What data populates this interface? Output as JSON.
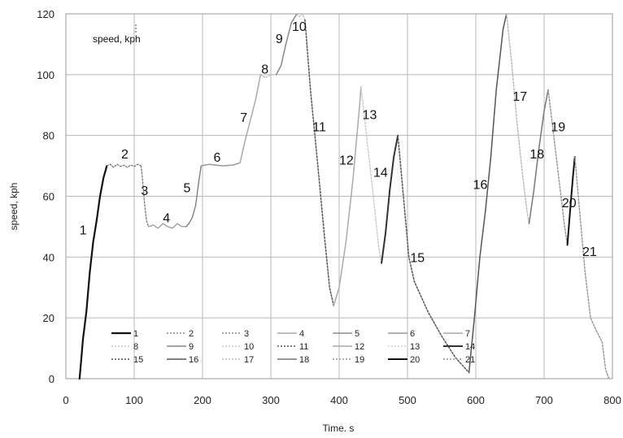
{
  "chart_data": {
    "type": "line",
    "title": "",
    "inner_label": "speed, kph",
    "xlabel": "Time. s",
    "ylabel": "speed, kph",
    "xlim": [
      0,
      800
    ],
    "ylim": [
      0,
      120
    ],
    "xticks": [
      "0",
      "100",
      "200",
      "300",
      "400",
      "500",
      "600",
      "700",
      "800"
    ],
    "yticks": [
      "0",
      "20",
      "40",
      "60",
      "80",
      "100",
      "120"
    ],
    "grid": true,
    "legend_position": "bottom-left inside",
    "series": [
      {
        "name": "1",
        "color": "#111111",
        "dash": "",
        "width": 2.2,
        "points": [
          [
            20,
            0
          ],
          [
            22,
            5
          ],
          [
            25,
            13
          ],
          [
            30,
            22
          ],
          [
            35,
            35
          ],
          [
            40,
            45
          ],
          [
            45,
            52
          ],
          [
            50,
            60
          ],
          [
            55,
            66
          ],
          [
            60,
            70
          ]
        ]
      },
      {
        "name": "2",
        "color": "#777777",
        "dash": "2,2",
        "width": 1.3,
        "points": [
          [
            60,
            70
          ],
          [
            65,
            70.5
          ],
          [
            70,
            69.5
          ],
          [
            75,
            70.5
          ],
          [
            80,
            69.8
          ],
          [
            85,
            70.2
          ],
          [
            90,
            69.5
          ],
          [
            95,
            70.3
          ],
          [
            100,
            69.8
          ],
          [
            105,
            70.5
          ],
          [
            110,
            70
          ]
        ]
      },
      {
        "name": "3",
        "color": "#777777",
        "dash": "2,2",
        "width": 1.3,
        "points": [
          [
            110,
            70
          ],
          [
            112,
            66
          ],
          [
            115,
            58
          ],
          [
            118,
            52
          ],
          [
            121,
            50
          ]
        ]
      },
      {
        "name": "4",
        "color": "#999999",
        "dash": "",
        "width": 1.3,
        "points": [
          [
            121,
            50
          ],
          [
            128,
            50.5
          ],
          [
            135,
            49.5
          ],
          [
            142,
            51
          ],
          [
            149,
            50
          ],
          [
            156,
            49.5
          ],
          [
            163,
            51
          ],
          [
            170,
            50
          ],
          [
            176,
            50
          ]
        ]
      },
      {
        "name": "5",
        "color": "#777777",
        "dash": "",
        "width": 1.3,
        "points": [
          [
            176,
            50
          ],
          [
            180,
            51
          ],
          [
            185,
            53
          ],
          [
            190,
            57
          ],
          [
            194,
            64
          ],
          [
            198,
            70
          ]
        ]
      },
      {
        "name": "6",
        "color": "#999999",
        "dash": "",
        "width": 1.5,
        "points": [
          [
            198,
            70
          ],
          [
            210,
            70.5
          ],
          [
            230,
            70
          ],
          [
            245,
            70.3
          ],
          [
            255,
            71
          ]
        ]
      },
      {
        "name": "7",
        "color": "#aaaaaa",
        "dash": "",
        "width": 1.5,
        "points": [
          [
            255,
            71
          ],
          [
            262,
            78
          ],
          [
            270,
            85
          ],
          [
            278,
            92
          ],
          [
            285,
            100
          ]
        ]
      },
      {
        "name": "8",
        "color": "#bbbbbb",
        "dash": "2,2",
        "width": 1.3,
        "points": [
          [
            285,
            100
          ],
          [
            292,
            99
          ],
          [
            300,
            100
          ],
          [
            308,
            100
          ]
        ]
      },
      {
        "name": "9",
        "color": "#888888",
        "dash": "",
        "width": 1.5,
        "points": [
          [
            308,
            100
          ],
          [
            315,
            103
          ],
          [
            322,
            110
          ],
          [
            330,
            117
          ],
          [
            338,
            120
          ]
        ]
      },
      {
        "name": "10",
        "color": "#bbbbbb",
        "dash": "2,2",
        "width": 1.3,
        "points": [
          [
            338,
            120
          ],
          [
            342,
            119
          ],
          [
            346,
            120
          ],
          [
            350,
            118
          ]
        ]
      },
      {
        "name": "11",
        "color": "#555555",
        "dash": "2,2",
        "width": 1.5,
        "points": [
          [
            350,
            118
          ],
          [
            358,
            95
          ],
          [
            368,
            72
          ],
          [
            378,
            48
          ],
          [
            386,
            30
          ],
          [
            392,
            24
          ]
        ]
      },
      {
        "name": "12",
        "color": "#aaaaaa",
        "dash": "",
        "width": 1.5,
        "points": [
          [
            392,
            24
          ],
          [
            400,
            30
          ],
          [
            410,
            45
          ],
          [
            420,
            65
          ],
          [
            430,
            90
          ],
          [
            432,
            96
          ]
        ]
      },
      {
        "name": "13",
        "color": "#cccccc",
        "dash": "2,2",
        "width": 1.5,
        "points": [
          [
            432,
            96
          ],
          [
            440,
            80
          ],
          [
            450,
            60
          ],
          [
            458,
            43
          ],
          [
            462,
            38
          ]
        ]
      },
      {
        "name": "14",
        "color": "#333333",
        "dash": "",
        "width": 2,
        "points": [
          [
            462,
            38
          ],
          [
            468,
            48
          ],
          [
            474,
            62
          ],
          [
            480,
            73
          ],
          [
            486,
            80
          ]
        ]
      },
      {
        "name": "15",
        "color": "#555555",
        "dash": "2,2",
        "width": 1.5,
        "points": [
          [
            486,
            80
          ],
          [
            494,
            60
          ],
          [
            502,
            40
          ],
          [
            510,
            32
          ],
          [
            530,
            22
          ],
          [
            550,
            14
          ],
          [
            570,
            7
          ],
          [
            590,
            2
          ]
        ]
      },
      {
        "name": "16",
        "color": "#555555",
        "dash": "",
        "width": 1.5,
        "points": [
          [
            590,
            2
          ],
          [
            598,
            20
          ],
          [
            606,
            40
          ],
          [
            614,
            55
          ],
          [
            622,
            73
          ],
          [
            630,
            95
          ],
          [
            640,
            115
          ],
          [
            645,
            120
          ]
        ]
      },
      {
        "name": "17",
        "color": "#bbbbbb",
        "dash": "2,2",
        "width": 1.5,
        "points": [
          [
            645,
            120
          ],
          [
            652,
            105
          ],
          [
            660,
            85
          ],
          [
            668,
            68
          ],
          [
            675,
            55
          ],
          [
            678,
            51
          ]
        ]
      },
      {
        "name": "18",
        "color": "#777777",
        "dash": "",
        "width": 1.5,
        "points": [
          [
            678,
            51
          ],
          [
            685,
            62
          ],
          [
            692,
            75
          ],
          [
            700,
            88
          ],
          [
            706,
            95
          ]
        ]
      },
      {
        "name": "19",
        "color": "#999999",
        "dash": "2,2",
        "width": 1.5,
        "points": [
          [
            706,
            95
          ],
          [
            714,
            80
          ],
          [
            722,
            65
          ],
          [
            730,
            50
          ],
          [
            734,
            44
          ]
        ]
      },
      {
        "name": "20",
        "color": "#111111",
        "dash": "",
        "width": 2,
        "points": [
          [
            734,
            44
          ],
          [
            738,
            55
          ],
          [
            742,
            66
          ],
          [
            745,
            73
          ]
        ]
      },
      {
        "name": "21",
        "color": "#999999",
        "dash": "2,2",
        "width": 1.5,
        "points": [
          [
            745,
            73
          ],
          [
            752,
            55
          ],
          [
            760,
            35
          ],
          [
            768,
            20
          ],
          [
            776,
            16
          ],
          [
            785,
            12
          ],
          [
            790,
            3
          ],
          [
            795,
            0
          ]
        ]
      }
    ],
    "segment_labels": [
      {
        "text": "1",
        "x": 20,
        "y": 49
      },
      {
        "text": "2",
        "x": 81,
        "y": 74
      },
      {
        "text": "3",
        "x": 110,
        "y": 62
      },
      {
        "text": "4",
        "x": 142,
        "y": 53
      },
      {
        "text": "5",
        "x": 172,
        "y": 63
      },
      {
        "text": "6",
        "x": 216,
        "y": 73
      },
      {
        "text": "7",
        "x": 255,
        "y": 86
      },
      {
        "text": "8",
        "x": 286,
        "y": 102
      },
      {
        "text": "9",
        "x": 307,
        "y": 112
      },
      {
        "text": "10",
        "x": 331,
        "y": 116
      },
      {
        "text": "11",
        "x": 361,
        "y": 83
      },
      {
        "text": "12",
        "x": 400,
        "y": 72
      },
      {
        "text": "13",
        "x": 434,
        "y": 87
      },
      {
        "text": "14",
        "x": 450,
        "y": 68
      },
      {
        "text": "15",
        "x": 504,
        "y": 40
      },
      {
        "text": "16",
        "x": 596,
        "y": 64
      },
      {
        "text": "17",
        "x": 654,
        "y": 93
      },
      {
        "text": "18",
        "x": 679,
        "y": 74
      },
      {
        "text": "19",
        "x": 710,
        "y": 83
      },
      {
        "text": "20",
        "x": 726,
        "y": 58
      },
      {
        "text": "21",
        "x": 756,
        "y": 42
      }
    ]
  }
}
